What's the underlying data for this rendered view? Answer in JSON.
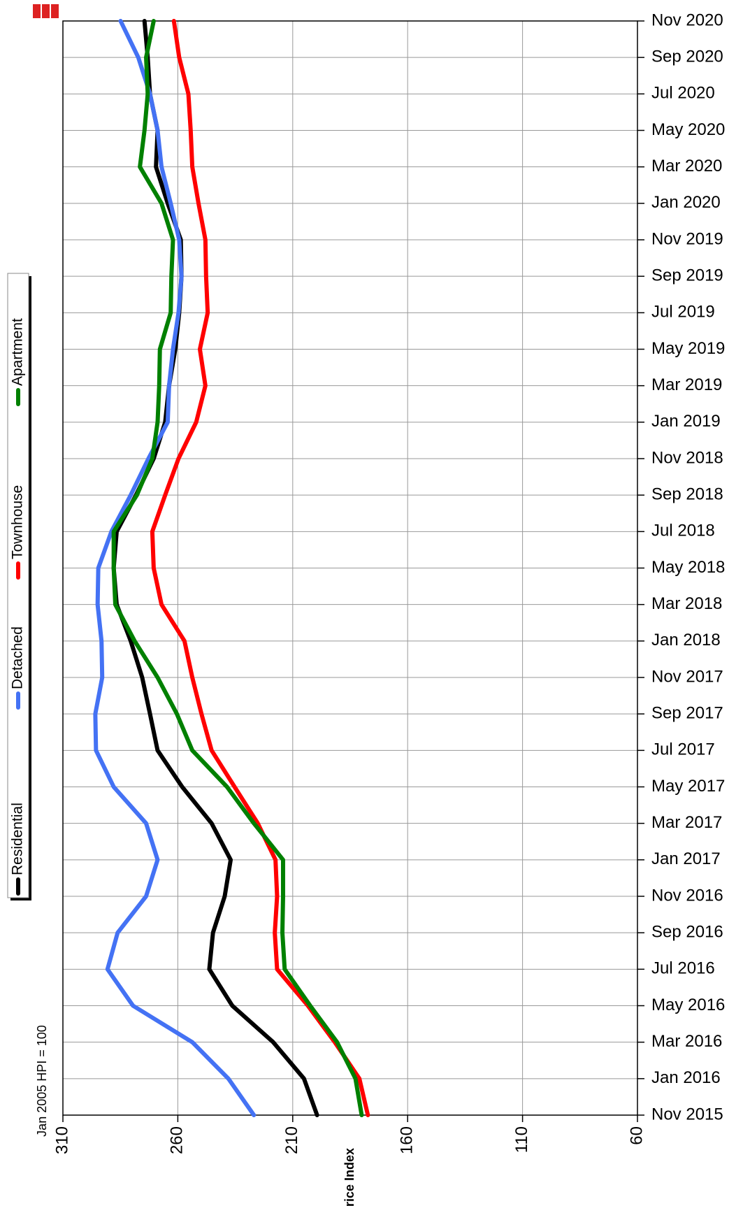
{
  "chart_data": {
    "type": "line",
    "x": [
      "Nov 2015",
      "Jan 2016",
      "Mar 2016",
      "May 2016",
      "Jul 2016",
      "Sep 2016",
      "Nov 2016",
      "Jan 2017",
      "Mar 2017",
      "May 2017",
      "Jul 2017",
      "Sep 2017",
      "Nov 2017",
      "Jan 2018",
      "Mar 2018",
      "May 2018",
      "Jul 2018",
      "Sep 2018",
      "Nov 2018",
      "Jan 2019",
      "Mar 2019",
      "May 2019",
      "Jul 2019",
      "Sep 2019",
      "Nov 2019",
      "Jan 2020",
      "Mar 2020",
      "May 2020",
      "Jul 2020",
      "Sep 2020",
      "Nov 2020"
    ],
    "series": [
      {
        "name": "Residential",
        "color": "#000000",
        "values": [
          199.4,
          205.1,
          218.5,
          236.3,
          246.3,
          244.7,
          239.6,
          237.0,
          245.3,
          258.1,
          268.8,
          272.1,
          275.5,
          280.5,
          286.6,
          287.9,
          286.6,
          278.2,
          270.5,
          265.5,
          263.8,
          261.1,
          259.4,
          258.4,
          258.7,
          264.4,
          269.5,
          268.8,
          272.1,
          273.1,
          274.5
        ]
      },
      {
        "name": "Detached",
        "color": "#4472f4",
        "values": [
          226.9,
          238.0,
          253.7,
          279.5,
          290.6,
          286.2,
          273.8,
          268.8,
          273.8,
          287.9,
          295.6,
          295.9,
          292.9,
          293.2,
          294.9,
          294.6,
          288.9,
          280.5,
          272.8,
          264.4,
          263.8,
          262.1,
          259.7,
          258.4,
          259.4,
          263.1,
          267.1,
          268.8,
          272.1,
          277.2,
          284.9
        ]
      },
      {
        "name": "Townhouse",
        "color": "#ff0000",
        "values": [
          177.3,
          181.0,
          191.7,
          203.4,
          216.8,
          217.8,
          216.8,
          217.5,
          225.2,
          235.3,
          245.3,
          249.7,
          253.7,
          257.1,
          267.1,
          270.5,
          271.1,
          265.5,
          259.7,
          252.0,
          248.0,
          250.4,
          247.0,
          247.7,
          248.0,
          251.0,
          253.7,
          254.4,
          255.4,
          259.4,
          261.7
        ]
      },
      {
        "name": "Apartment",
        "color": "#008000",
        "values": [
          180.0,
          182.7,
          190.7,
          202.4,
          213.5,
          214.5,
          214.2,
          214.2,
          226.9,
          238.6,
          253.7,
          260.4,
          268.8,
          278.8,
          287.2,
          287.9,
          287.9,
          277.8,
          271.1,
          268.8,
          268.1,
          267.8,
          263.1,
          262.8,
          262.1,
          267.1,
          276.5,
          274.5,
          273.1,
          273.8,
          270.5
        ]
      }
    ],
    "ylim": [
      310,
      60
    ],
    "yticks": [
      310,
      260,
      210,
      160,
      110,
      60
    ],
    "ylabel": "Price Index",
    "annotation": "Jan 2005 HPI = 100",
    "grid": true,
    "legend": "left"
  }
}
